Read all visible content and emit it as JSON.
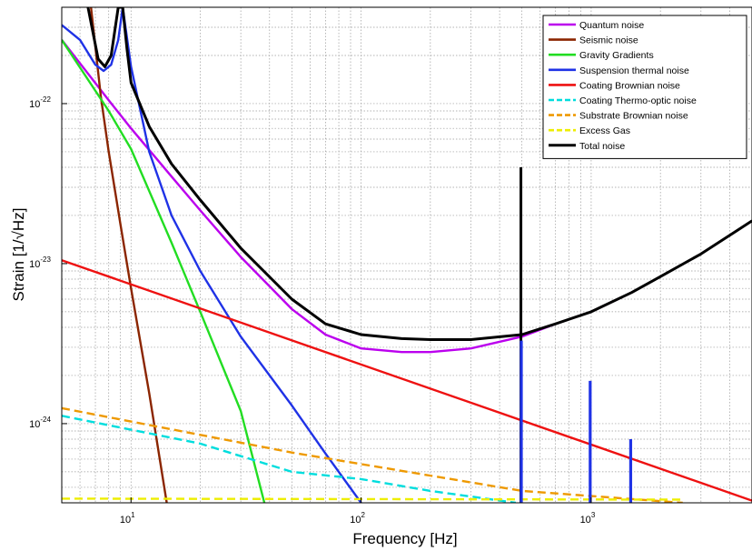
{
  "chart_data": {
    "type": "line",
    "title": "",
    "xlabel": "Frequency [Hz]",
    "ylabel": "Strain [1/√Hz]",
    "xscale": "log",
    "yscale": "log",
    "xlim": [
      5,
      5000
    ],
    "ylim": [
      3.2e-25,
      4e-22
    ],
    "x_tick_labels": [
      "10^1",
      "10^2",
      "10^3"
    ],
    "x_ticks": [
      10,
      100,
      1000
    ],
    "y_tick_labels": [
      "10^-24",
      "10^-23",
      "10^-22"
    ],
    "y_ticks": [
      1e-24,
      1e-23,
      1e-22
    ],
    "grid": true,
    "legend_position": "top-right",
    "series": [
      {
        "name": "Quantum noise",
        "color": "#bb00ee",
        "dash": "solid",
        "x": [
          5,
          8,
          10,
          15,
          20,
          30,
          50,
          70,
          100,
          150,
          200,
          300,
          500,
          700,
          1000,
          1500
        ],
        "y": [
          2.5e-22,
          1.05e-22,
          7e-23,
          3.5e-23,
          2.15e-23,
          1.1e-23,
          5.2e-24,
          3.6e-24,
          2.95e-24,
          2.8e-24,
          2.8e-24,
          2.95e-24,
          3.5e-24,
          4.2e-24,
          5e-24,
          6.6e-24
        ]
      },
      {
        "name": "Seismic noise",
        "color": "#8b2500",
        "dash": "solid",
        "x": [
          6.7,
          7.4,
          8,
          9,
          10,
          12,
          14.3
        ],
        "y": [
          4e-22,
          1.1e-22,
          5e-23,
          1.75e-23,
          7e-24,
          1.55e-24,
          3.2e-25
        ]
      },
      {
        "name": "Gravity Gradients",
        "color": "#22dd22",
        "dash": "solid",
        "x": [
          5,
          8,
          10,
          15,
          20,
          30,
          38
        ],
        "y": [
          2.5e-22,
          9e-23,
          5.2e-23,
          1.35e-23,
          5e-24,
          1.2e-24,
          3.2e-25
        ]
      },
      {
        "name": "Suspension thermal noise",
        "color": "#1f32e6",
        "dash": "solid",
        "x": [
          5,
          6,
          7,
          7.6,
          8.2,
          8.8,
          9.2,
          10,
          12,
          15,
          20,
          30,
          50,
          70,
          100
        ],
        "y": [
          3.1e-22,
          2.5e-22,
          1.75e-22,
          1.6e-22,
          1.75e-22,
          2.5e-22,
          4e-22,
          1.7e-22,
          5e-23,
          2e-23,
          9e-24,
          3.5e-24,
          1.3e-24,
          6.5e-25,
          3.2e-25
        ]
      },
      {
        "name": "Coating Brownian noise",
        "color": "#ee1111",
        "dash": "solid",
        "x": [
          5,
          5000
        ],
        "y": [
          1.05e-23,
          3.3e-25
        ]
      },
      {
        "name": "Coating Thermo-optic noise",
        "color": "#00dddd",
        "dash": "dashed",
        "x": [
          5,
          20,
          50,
          100,
          200,
          470
        ],
        "y": [
          1.12e-24,
          7.5e-25,
          5e-25,
          4.5e-25,
          3.8e-25,
          3.2e-25
        ]
      },
      {
        "name": "Substrate Brownian noise",
        "color": "#ee9900",
        "dash": "dashed",
        "x": [
          5,
          50,
          500,
          2500
        ],
        "y": [
          1.25e-24,
          6.6e-25,
          3.8e-25,
          3.2e-25
        ]
      },
      {
        "name": "Excess Gas",
        "color": "#eeee00",
        "dash": "dashed",
        "x": [
          5,
          2500
        ],
        "y": [
          3.4e-25,
          3.35e-25
        ]
      },
      {
        "name": "Total noise",
        "color": "#000000",
        "dash": "solid",
        "x": [
          6.5,
          7.2,
          7.7,
          8.2,
          8.8,
          9.2,
          9.6,
          10,
          12,
          15,
          20,
          30,
          50,
          70,
          100,
          150,
          200,
          300,
          500,
          700,
          1000,
          1500,
          2000,
          3000,
          5000
        ],
        "y": [
          4e-22,
          1.9e-22,
          1.7e-22,
          2e-22,
          4e-22,
          4e-22,
          2.2e-22,
          1.35e-22,
          7.2e-23,
          4.2e-23,
          2.5e-23,
          1.25e-23,
          6e-24,
          4.2e-24,
          3.6e-24,
          3.4e-24,
          3.35e-24,
          3.35e-24,
          3.6e-24,
          4.2e-24,
          5e-24,
          6.6e-24,
          8.3e-24,
          1.15e-23,
          1.85e-23
        ]
      }
    ],
    "spikes": [
      {
        "series": "Total noise",
        "x": 495,
        "y_top": 4e-23
      },
      {
        "series": "Suspension thermal noise",
        "x": 497,
        "y_top": 3.3e-24
      },
      {
        "series": "Suspension thermal noise",
        "x": 990,
        "y_top": 1.85e-24
      },
      {
        "series": "Suspension thermal noise",
        "x": 1485,
        "y_top": 8e-25
      }
    ]
  }
}
